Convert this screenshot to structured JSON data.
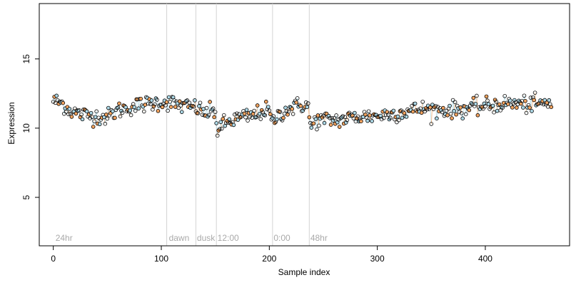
{
  "chart_data": {
    "type": "scatter",
    "title": "",
    "xlabel": "Sample index",
    "ylabel": "Expression",
    "xlim": [
      -13,
      478
    ],
    "ylim": [
      1.5,
      19.0
    ],
    "x_ticks": [
      0,
      100,
      200,
      300,
      400
    ],
    "y_ticks": [
      5,
      10,
      15
    ],
    "grid": false,
    "legend": "none",
    "colors": {
      "point_edge": "#000000",
      "point_fill_primary": "#add8e6",
      "point_fill_secondary": "#f4a460",
      "vline": "#d3d3d3",
      "annotation": "#a9a9a9"
    },
    "vertical_lines": [
      105,
      132,
      151,
      203,
      237
    ],
    "annotations": [
      {
        "x": 2,
        "text": "24hr"
      },
      {
        "x": 107,
        "text": "dawn"
      },
      {
        "x": 133,
        "text": "dusk"
      },
      {
        "x": 152,
        "text": "12:00"
      },
      {
        "x": 204,
        "text": "0:00"
      },
      {
        "x": 238,
        "text": "48hr"
      }
    ],
    "trend_knots": [
      [
        0,
        12.0
      ],
      [
        8,
        11.8
      ],
      [
        15,
        11.3
      ],
      [
        25,
        11.0
      ],
      [
        35,
        10.9
      ],
      [
        50,
        10.8
      ],
      [
        60,
        11.3
      ],
      [
        75,
        11.6
      ],
      [
        90,
        11.8
      ],
      [
        105,
        11.9
      ],
      [
        120,
        11.6
      ],
      [
        132,
        11.5
      ],
      [
        140,
        11.1
      ],
      [
        150,
        11.2
      ],
      [
        152,
        9.8
      ],
      [
        158,
        10.3
      ],
      [
        170,
        10.7
      ],
      [
        185,
        10.9
      ],
      [
        195,
        11.3
      ],
      [
        200,
        11.2
      ],
      [
        203,
        10.3
      ],
      [
        206,
        10.8
      ],
      [
        215,
        11.3
      ],
      [
        230,
        11.7
      ],
      [
        236,
        11.6
      ],
      [
        238,
        10.0
      ],
      [
        243,
        10.6
      ],
      [
        255,
        10.6
      ],
      [
        265,
        10.6
      ],
      [
        280,
        10.8
      ],
      [
        300,
        10.9
      ],
      [
        320,
        11.1
      ],
      [
        340,
        11.4
      ],
      [
        360,
        11.3
      ],
      [
        380,
        11.4
      ],
      [
        400,
        11.6
      ],
      [
        420,
        11.8
      ],
      [
        440,
        11.7
      ],
      [
        462,
        11.8
      ]
    ],
    "point_count": 462,
    "noise_sd": 0.3
  }
}
